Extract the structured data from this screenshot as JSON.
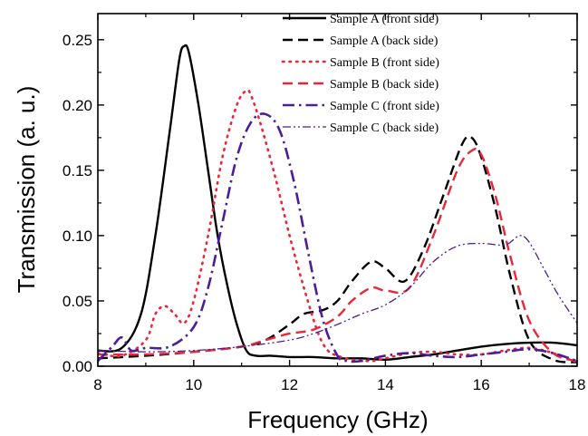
{
  "chart_data": {
    "type": "line",
    "title": "",
    "xlabel": "Frequency (GHz)",
    "ylabel": "Transmission (a. u.)",
    "xlim": [
      8,
      18
    ],
    "ylim": [
      0,
      0.27
    ],
    "xticks": [
      8,
      10,
      12,
      14,
      16,
      18
    ],
    "xtick_labels": [
      "8",
      "10",
      "12",
      "14",
      "16",
      "18"
    ],
    "yticks": [
      0,
      0.05,
      0.1,
      0.15,
      0.2,
      0.25
    ],
    "ytick_labels": [
      "0.00",
      "0.05",
      "0.10",
      "0.15",
      "0.20",
      "0.25"
    ],
    "grid": false,
    "legend_position": "top-right",
    "series": [
      {
        "name": "Sample A (front side)",
        "color": "#000000",
        "style": "solid",
        "width": 2.4,
        "x": [
          8,
          8.5,
          8.9,
          9.2,
          9.5,
          9.7,
          9.8,
          9.9,
          10.1,
          10.3,
          10.5,
          10.7,
          10.9,
          11.1,
          11.3,
          11.6,
          12,
          12.5,
          13,
          13.5,
          14,
          14.5,
          15,
          15.5,
          16,
          16.5,
          17,
          17.5,
          18
        ],
        "y": [
          0.012,
          0.014,
          0.04,
          0.1,
          0.18,
          0.235,
          0.245,
          0.24,
          0.2,
          0.15,
          0.1,
          0.062,
          0.032,
          0.012,
          0.008,
          0.008,
          0.007,
          0.007,
          0.006,
          0.006,
          0.005,
          0.007,
          0.009,
          0.012,
          0.015,
          0.017,
          0.018,
          0.018,
          0.016
        ]
      },
      {
        "name": "Sample A (back side)",
        "color": "#000000",
        "style": "dash",
        "width": 2.4,
        "x": [
          8,
          9,
          10,
          11,
          11.5,
          12,
          12.3,
          12.7,
          13,
          13.3,
          13.7,
          14,
          14.4,
          14.8,
          15.2,
          15.6,
          15.8,
          16,
          16.3,
          16.6,
          17,
          17.5,
          18
        ],
        "y": [
          0.006,
          0.008,
          0.011,
          0.015,
          0.02,
          0.032,
          0.04,
          0.043,
          0.05,
          0.065,
          0.08,
          0.075,
          0.065,
          0.09,
          0.13,
          0.17,
          0.175,
          0.16,
          0.12,
          0.07,
          0.02,
          0.005,
          0.003
        ]
      },
      {
        "name": "Sample B (front side)",
        "color": "#e8283a",
        "style": "dot",
        "width": 2.6,
        "x": [
          8,
          8.5,
          9,
          9.2,
          9.4,
          9.6,
          9.8,
          10,
          10.3,
          10.6,
          10.9,
          11.1,
          11.2,
          11.4,
          11.7,
          12,
          12.3,
          12.6,
          12.8,
          13,
          13.3,
          13.7,
          14,
          14.5,
          15,
          15.5,
          16,
          16.5,
          17,
          17.5,
          18
        ],
        "y": [
          0.01,
          0.008,
          0.02,
          0.04,
          0.046,
          0.04,
          0.033,
          0.05,
          0.1,
          0.16,
          0.2,
          0.211,
          0.207,
          0.185,
          0.145,
          0.1,
          0.06,
          0.025,
          0.012,
          0.008,
          0.005,
          0.004,
          0.006,
          0.01,
          0.011,
          0.009,
          0.009,
          0.012,
          0.014,
          0.01,
          0.003
        ]
      },
      {
        "name": "Sample B (back side)",
        "color": "#e8283a",
        "style": "dash",
        "width": 2.4,
        "x": [
          8,
          9,
          10,
          11,
          11.5,
          12,
          12.5,
          13,
          13.3,
          13.7,
          14,
          14.5,
          15,
          15.5,
          15.8,
          16,
          16.3,
          16.6,
          17,
          17.5,
          18
        ],
        "y": [
          0.009,
          0.009,
          0.011,
          0.015,
          0.02,
          0.025,
          0.028,
          0.038,
          0.05,
          0.06,
          0.058,
          0.06,
          0.1,
          0.15,
          0.165,
          0.162,
          0.13,
          0.085,
          0.035,
          0.01,
          0.004
        ]
      },
      {
        "name": "Sample C (front side)",
        "color": "#4b1d96",
        "style": "dashdot",
        "width": 2.6,
        "x": [
          8,
          8.3,
          8.5,
          8.7,
          9,
          9.5,
          10,
          10.3,
          10.6,
          10.9,
          11.2,
          11.5,
          11.8,
          12.1,
          12.4,
          12.7,
          13,
          13.2,
          13.5,
          14,
          14.5,
          15,
          15.5,
          16,
          16.5,
          17,
          17.5,
          18
        ],
        "y": [
          0.004,
          0.015,
          0.022,
          0.012,
          0.014,
          0.015,
          0.03,
          0.06,
          0.11,
          0.16,
          0.187,
          0.193,
          0.18,
          0.14,
          0.085,
          0.035,
          0.008,
          0.004,
          0.004,
          0.008,
          0.01,
          0.008,
          0.007,
          0.009,
          0.011,
          0.013,
          0.01,
          0.004
        ]
      },
      {
        "name": "Sample C (back side)",
        "color": "#4b1d96",
        "style": "dashdotdot",
        "width": 1.3,
        "x": [
          8,
          9,
          10,
          11,
          12,
          12.5,
          13,
          13.5,
          14,
          14.5,
          15,
          15.5,
          16,
          16.5,
          16.8,
          17,
          17.3,
          17.6,
          18
        ],
        "y": [
          0.012,
          0.011,
          0.012,
          0.015,
          0.02,
          0.025,
          0.032,
          0.04,
          0.047,
          0.06,
          0.08,
          0.092,
          0.094,
          0.093,
          0.1,
          0.095,
          0.075,
          0.055,
          0.033
        ]
      }
    ]
  }
}
